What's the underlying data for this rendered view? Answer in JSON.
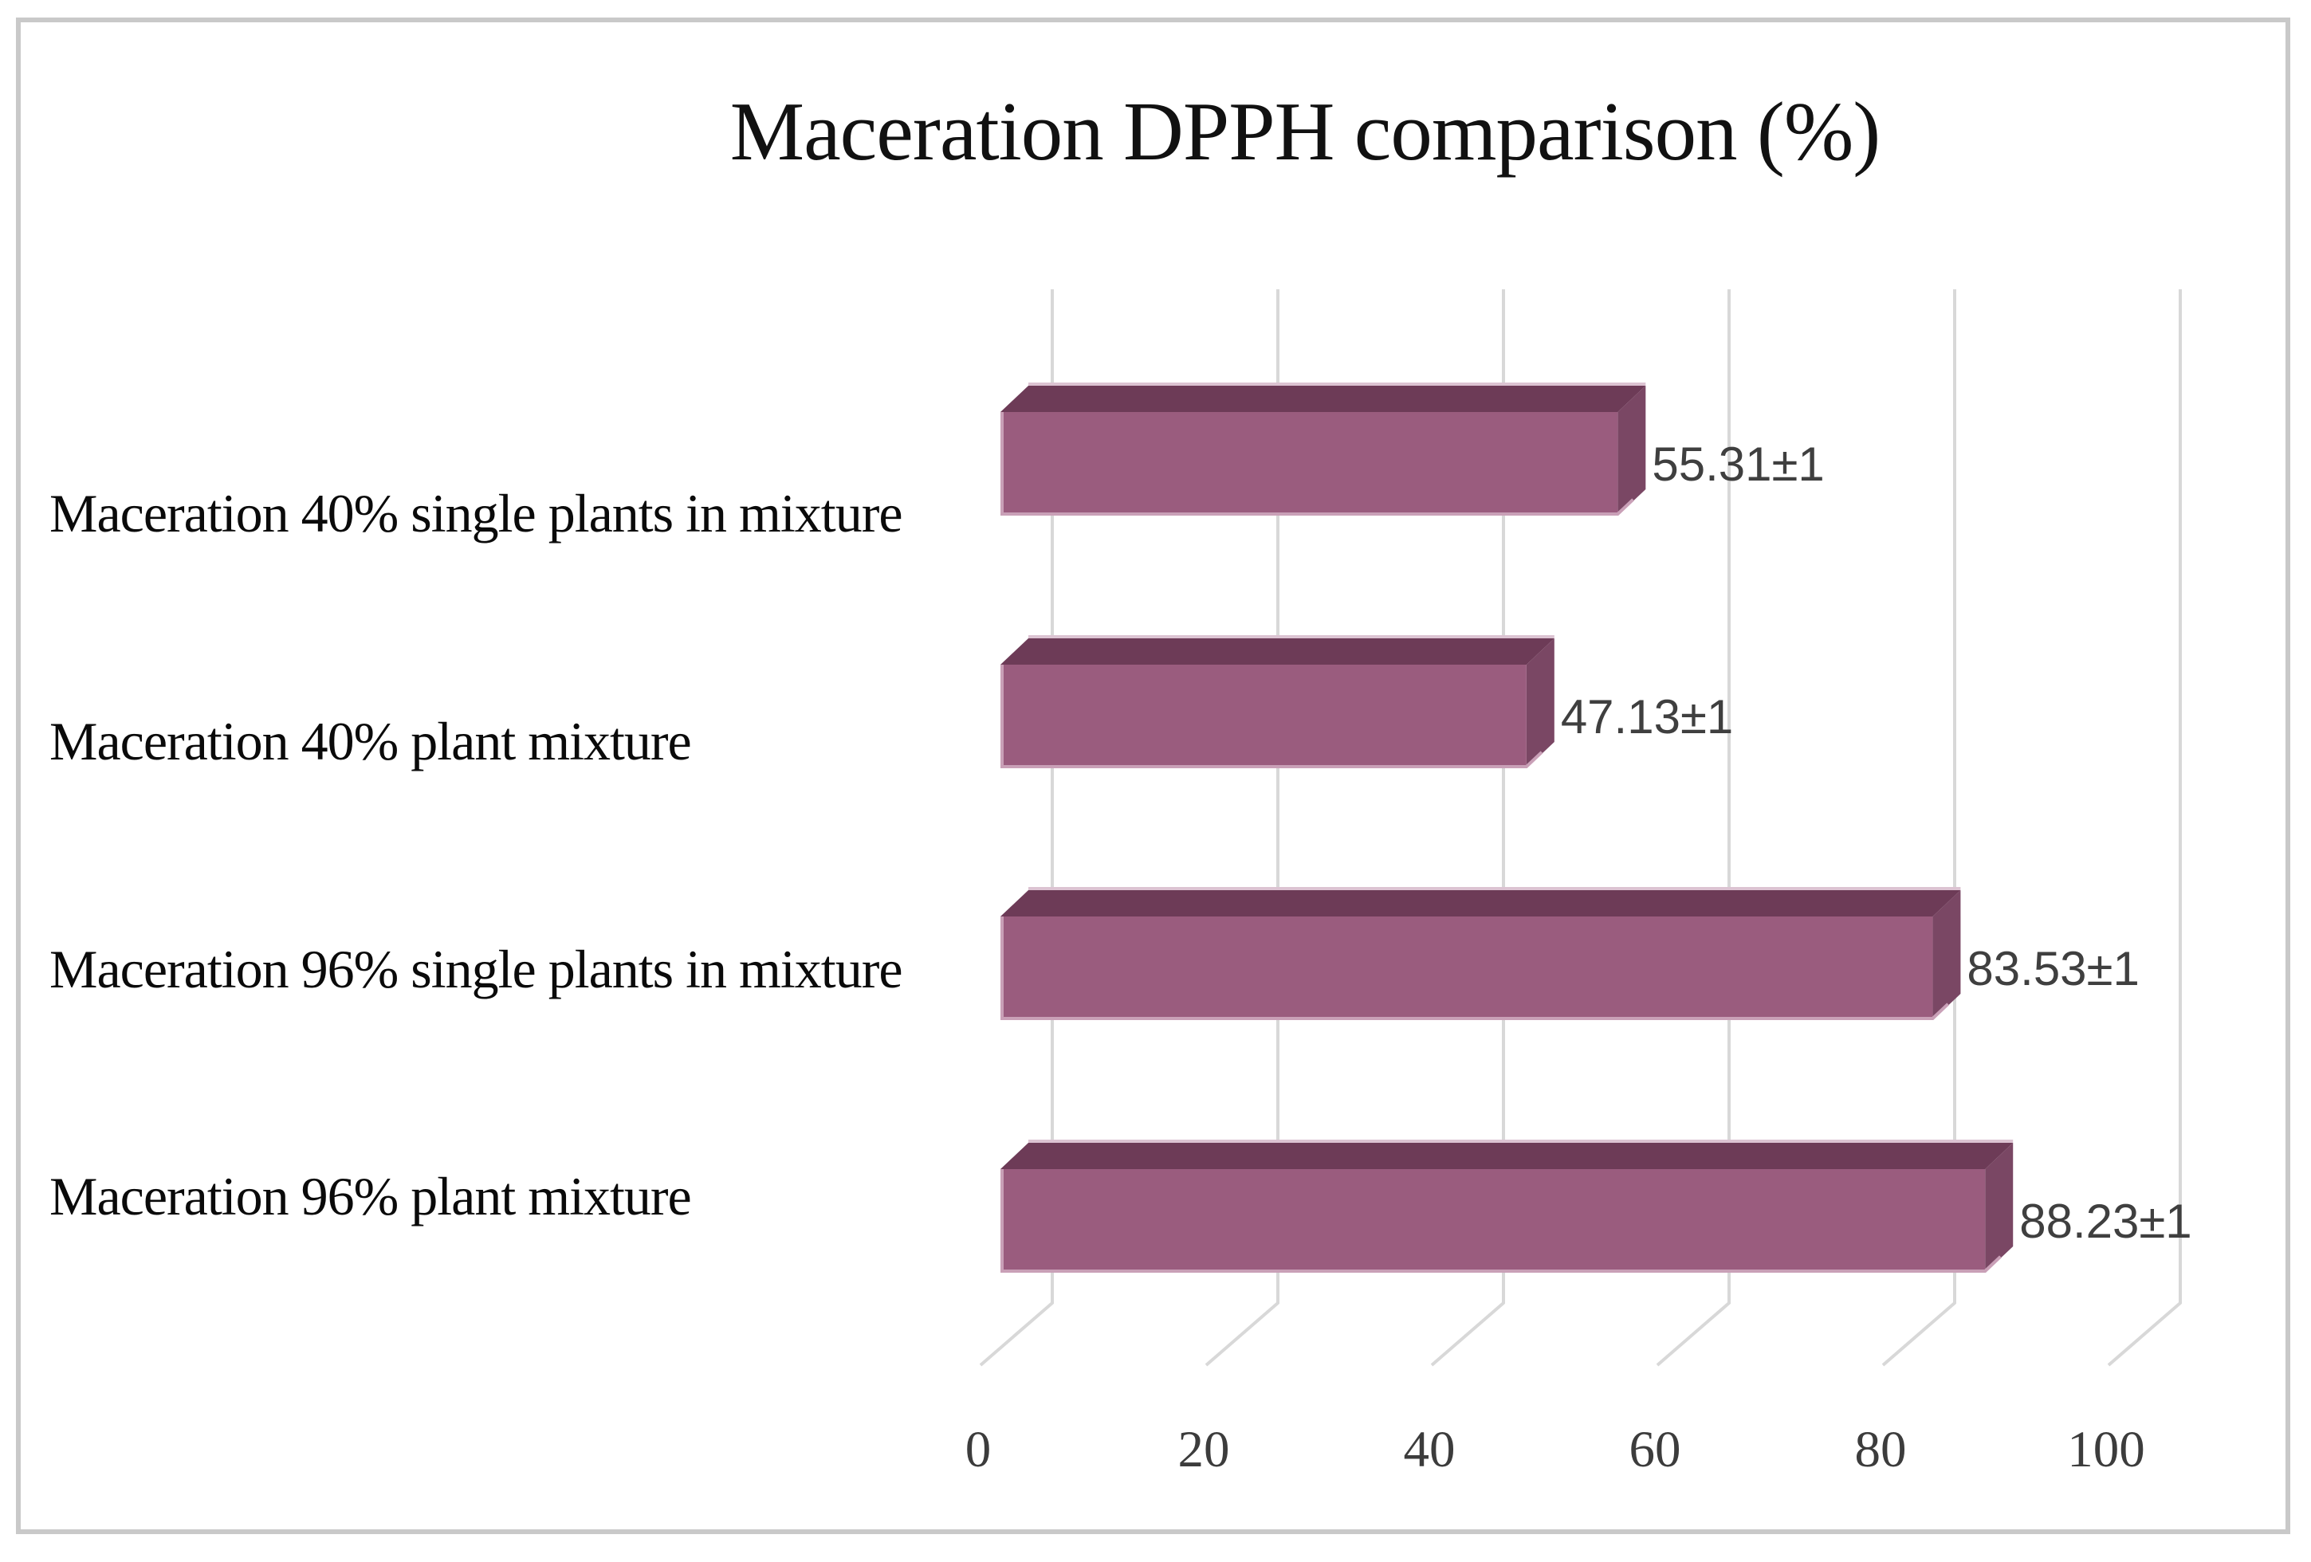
{
  "chart_data": {
    "type": "bar",
    "orientation": "horizontal",
    "style": "3d",
    "title": "Maceration DPPH comparison (%)",
    "categories": [
      "Maceration 40% single plants in mixture",
      "Maceration 40% plant mixture",
      "Maceration 96% single plants in mixture",
      "Maceration 96% plant mixture"
    ],
    "values": [
      55.31,
      47.13,
      83.53,
      88.23
    ],
    "error_margin": 1,
    "data_labels": [
      "55.31±1",
      "47.13±1",
      "83.53±1",
      "88.23±1"
    ],
    "x_ticks": [
      "0",
      "20",
      "40",
      "60",
      "80",
      "100"
    ],
    "xlim": [
      0,
      100
    ],
    "xlabel": "",
    "ylabel": "",
    "grid": true,
    "legend": "none",
    "colors": {
      "bar_front": "#9a5c7e",
      "bar_top": "#6d3b57",
      "bar_side": "#7a4764",
      "edge_highlight_bottom": "#c9a0b7",
      "edge_highlight_back": "#dcc3d2",
      "gridline": "#d8d8d8",
      "tick_text": "#3c3c3c",
      "data_label_text": "#3f3f3f",
      "category_text": "#0a0a0a",
      "title_text": "#111111",
      "frame_border": "#c9c9c9",
      "background": "#ffffff"
    }
  }
}
